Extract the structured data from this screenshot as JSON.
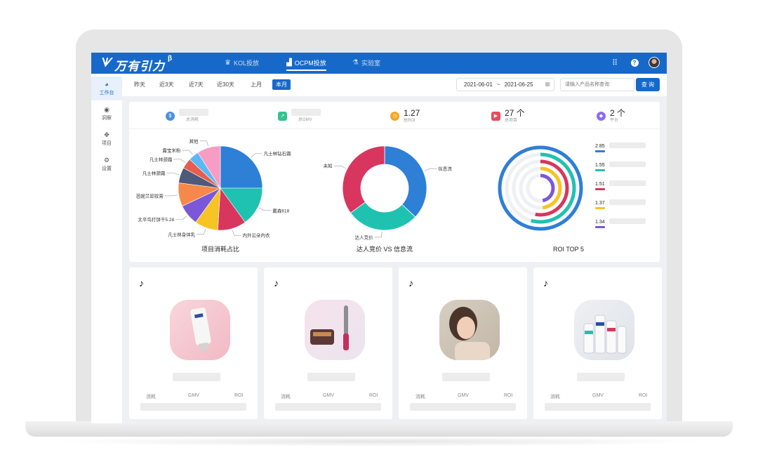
{
  "app": {
    "logo_text": "万有引力",
    "logo_sup": "β"
  },
  "nav": [
    {
      "label": "KOL投放",
      "icon": "crown-icon",
      "active": false
    },
    {
      "label": "OCPM投放",
      "icon": "bar-chart-icon",
      "active": true
    },
    {
      "label": "实验室",
      "icon": "flask-icon",
      "active": false
    }
  ],
  "sidebar": [
    {
      "label": "工作台",
      "icon": "dashboard-icon",
      "active": true
    },
    {
      "label": "洞察",
      "icon": "eye-icon",
      "active": false
    },
    {
      "label": "项目",
      "icon": "grid-icon",
      "active": false
    },
    {
      "label": "设置",
      "icon": "gear-icon",
      "active": false
    }
  ],
  "filters": {
    "quick_ranges": [
      "昨天",
      "近3天",
      "近7天",
      "近30天",
      "上月",
      "本月"
    ],
    "active_range": "本月",
    "date_start": "2021-06-01",
    "date_sep": "~",
    "date_end": "2021-06-25",
    "search_placeholder": "请输入产品名称查询",
    "search_button": "查 询"
  },
  "stats": [
    {
      "label": "总消耗",
      "value": "",
      "color": "#4a90e2",
      "icon": "coin-icon"
    },
    {
      "label": "总GMV",
      "value": "",
      "color": "#34c38f",
      "icon": "trend-icon"
    },
    {
      "label": "总ROI",
      "value": "1.27",
      "color": "#f5a623",
      "icon": "alarm-icon"
    },
    {
      "label": "总项目",
      "value": "27 个",
      "color": "#e94b5b",
      "icon": "play-icon"
    },
    {
      "label": "平台",
      "value": "2 个",
      "color": "#8e6cf0",
      "icon": "cube-icon"
    }
  ],
  "chart_data": [
    {
      "type": "pie",
      "title": "项目消耗占比",
      "slices": [
        {
          "label": "凡士林钻石霜",
          "value": 25,
          "color": "#2e7fd6"
        },
        {
          "label": "戴森618",
          "value": 15,
          "color": "#1fc2b0"
        },
        {
          "label": "内外云朵内衣",
          "value": 11,
          "color": "#d8365e"
        },
        {
          "label": "凡士林身体乳",
          "value": 9,
          "color": "#f7c325"
        },
        {
          "label": "太平鸟打饼干5.28",
          "value": 8,
          "color": "#7a58d8"
        },
        {
          "label": "芭妮兰卸妆膏",
          "value": 9,
          "color": "#f5884a"
        },
        {
          "label": "凡士林颈霜",
          "value": 6,
          "color": "#4e5a7a"
        },
        {
          "label": "凡士林颈霜",
          "value": 4,
          "color": "#e75e4f"
        },
        {
          "label": "露宝米粉",
          "value": 4,
          "color": "#5bb8f5"
        },
        {
          "label": "其他",
          "value": 9,
          "color": "#f79cc2"
        }
      ]
    },
    {
      "type": "pie",
      "title": "达人竞价 VS 信息流",
      "slices": [
        {
          "label": "信息流",
          "value": 37,
          "color": "#2e7fd6"
        },
        {
          "label": "达人竞价",
          "value": 28,
          "color": "#1fc2b0"
        },
        {
          "label": "未知",
          "value": 35,
          "color": "#d8365e"
        }
      ]
    },
    {
      "type": "bar",
      "title": "ROI TOP 5",
      "values": [
        2.85,
        1.55,
        1.51,
        1.37,
        1.34
      ],
      "colors": [
        "#2e7fd6",
        "#1fc2b0",
        "#d8365e",
        "#f7c325",
        "#7a58d8"
      ],
      "max": 2.85
    }
  ],
  "cards": [
    {
      "platform": "tiktok-icon",
      "product": "pink-tube-lotion-image",
      "metrics": [
        "消耗",
        "GMV",
        "ROI"
      ]
    },
    {
      "platform": "tiktok-icon",
      "product": "hair-styler-image",
      "metrics": [
        "消耗",
        "GMV",
        "ROI"
      ]
    },
    {
      "platform": "tiktok-icon",
      "product": "model-portrait-image",
      "metrics": [
        "消耗",
        "GMV",
        "ROI"
      ]
    },
    {
      "platform": "tiktok-icon",
      "product": "lotion-bottles-image",
      "metrics": [
        "消耗",
        "GMV",
        "ROI"
      ]
    }
  ]
}
